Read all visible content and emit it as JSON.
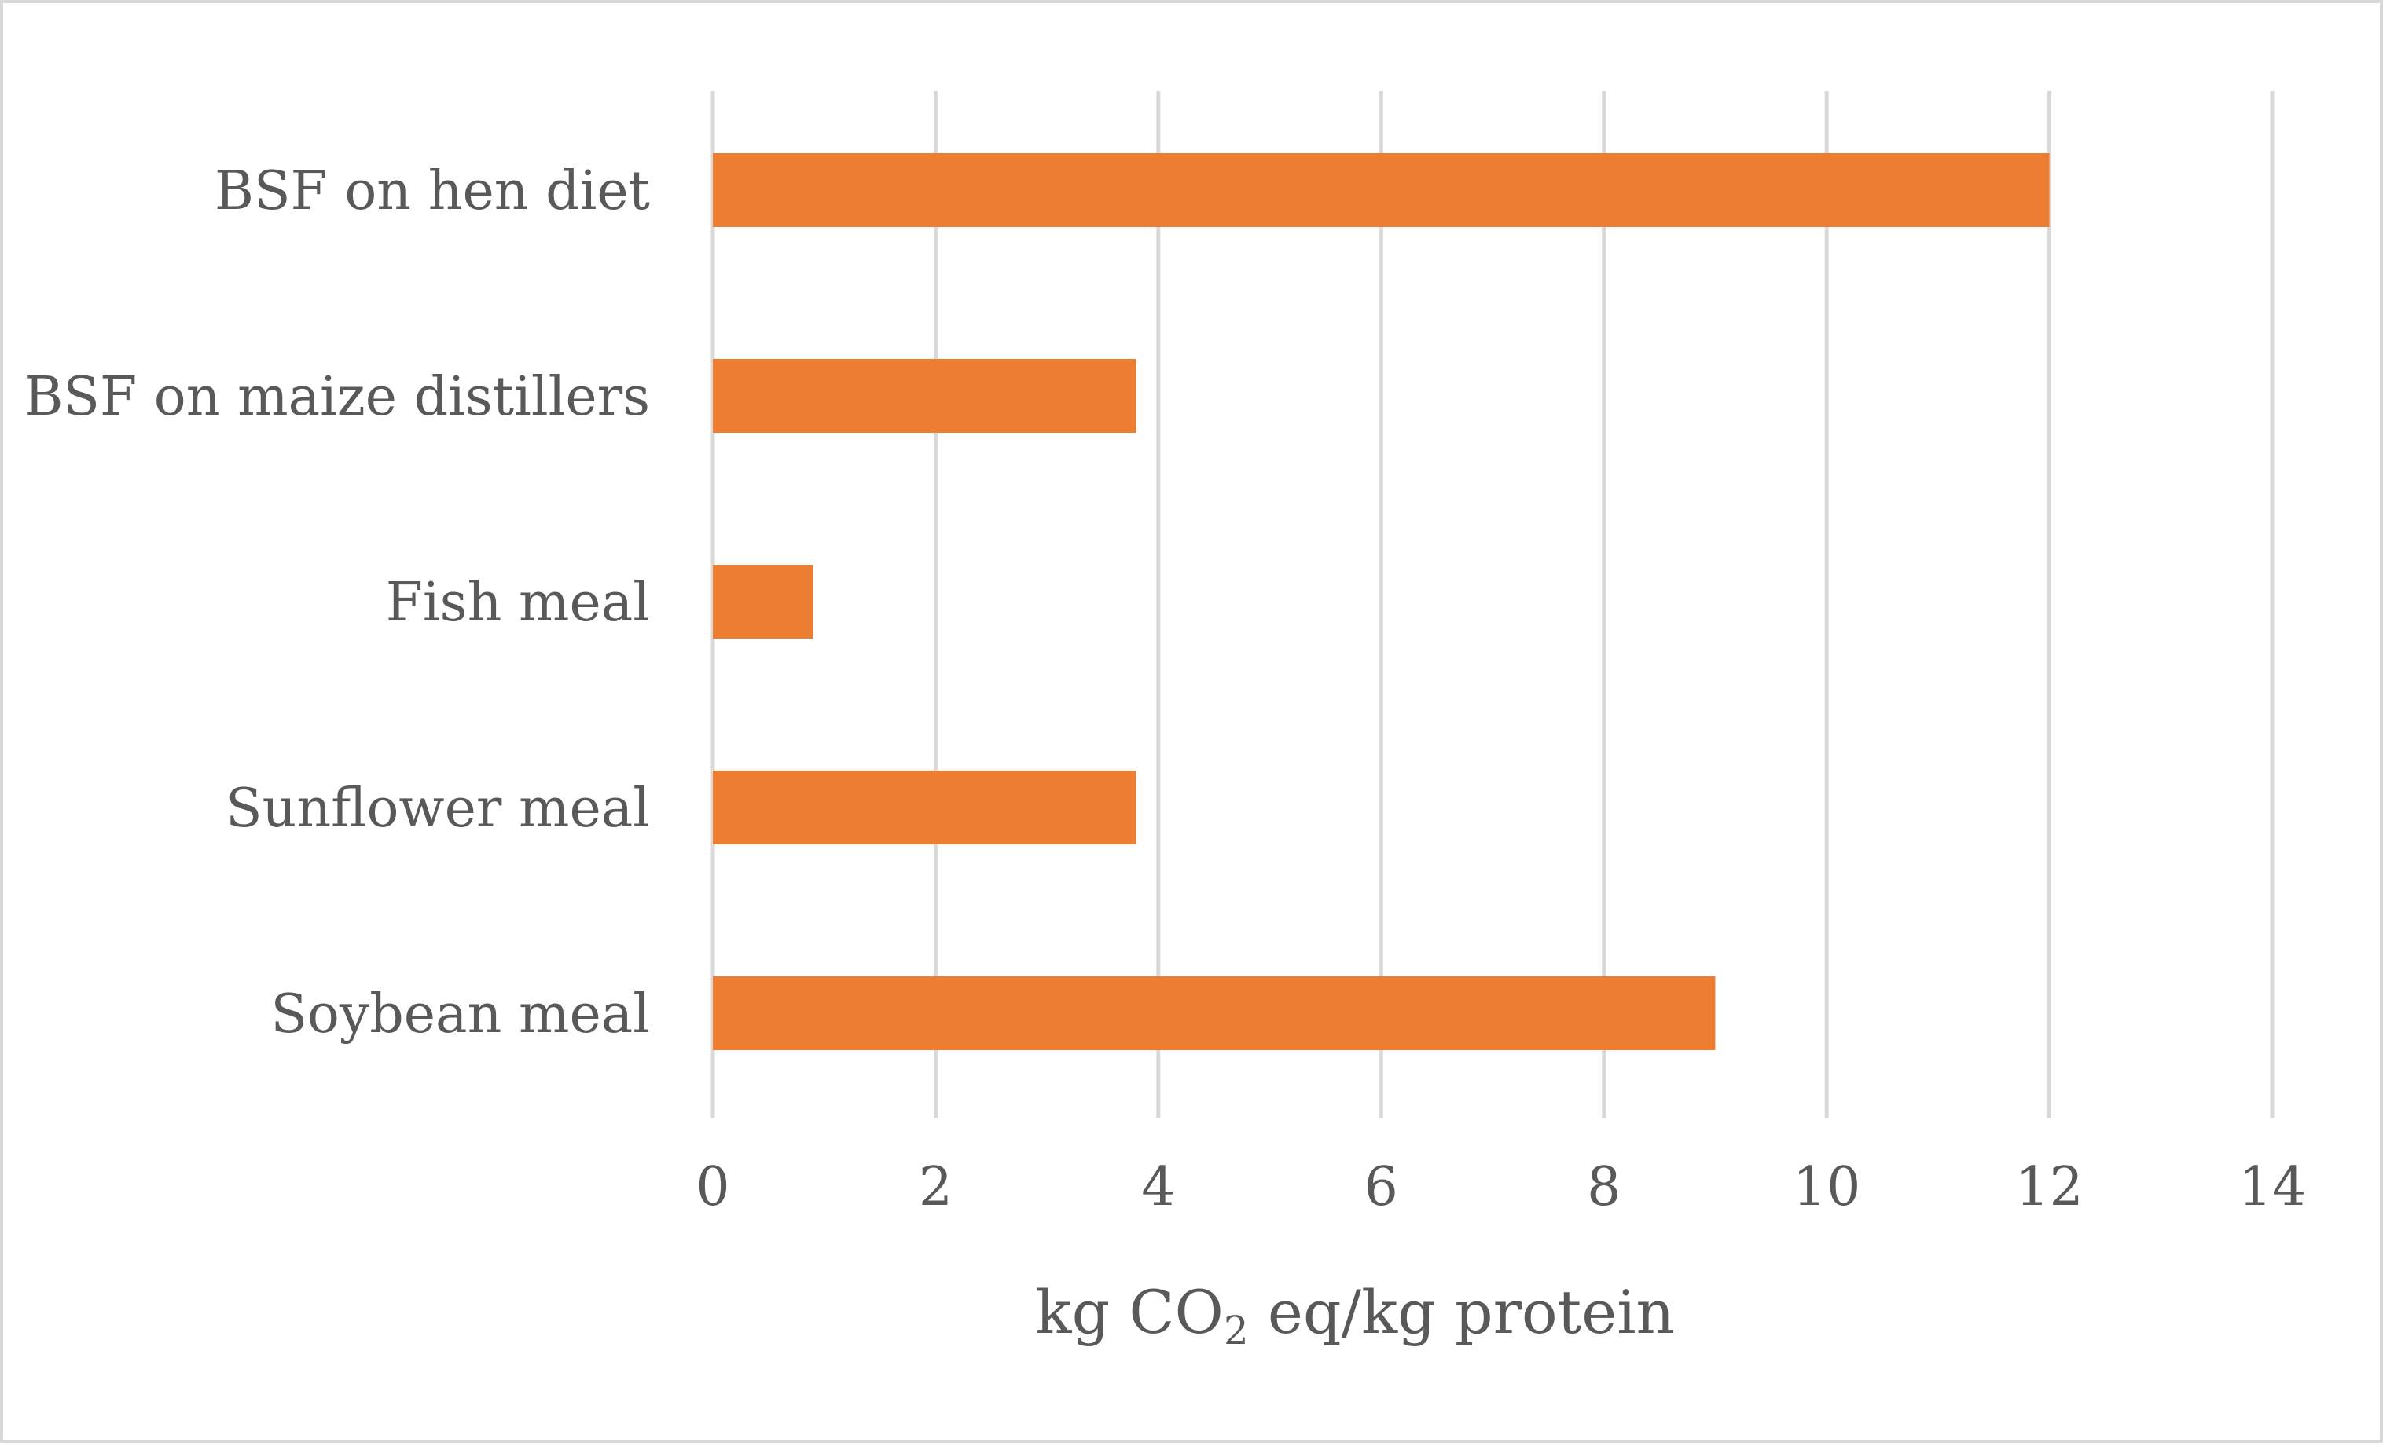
{
  "chart_data": {
    "type": "bar",
    "orientation": "horizontal",
    "categories": [
      "BSF on hen diet",
      "BSF on maize distillers",
      "Fish meal",
      "Sunflower meal",
      "Soybean meal"
    ],
    "values": [
      12.0,
      3.8,
      0.9,
      3.8,
      9.0
    ],
    "title": "",
    "xlabel": {
      "main": "kg CO",
      "subscript": "2",
      "rest": " eq/kg protein"
    },
    "ylabel": "",
    "xlim": [
      0,
      14
    ],
    "xticks": [
      "0",
      "2",
      "4",
      "6",
      "8",
      "10",
      "12",
      "14"
    ],
    "grid": "vertical",
    "legend": "none",
    "bar_color": "#ed7d31",
    "grid_color": "#d9d9d9"
  }
}
